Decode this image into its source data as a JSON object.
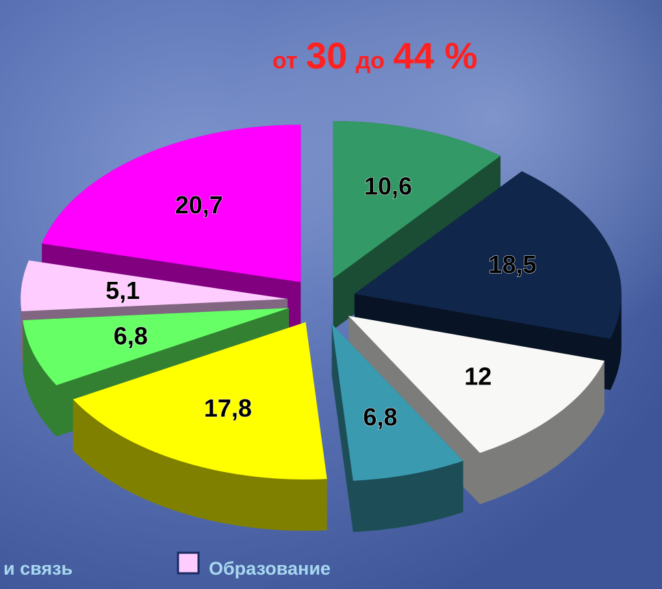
{
  "chart_data": {
    "type": "pie3d",
    "title_parts": [
      "от",
      "30",
      "до",
      "44 %"
    ],
    "title_color": "#ff2020",
    "values": [
      10.6,
      18.5,
      12,
      6.8,
      17.8,
      6.8,
      5.1,
      20.7
    ],
    "value_labels": [
      "10,6",
      "18,5",
      "12",
      "6,8",
      "17,8",
      "6,8",
      "5,1",
      "20,7"
    ],
    "colors": [
      "#339966",
      "#10264a",
      "#f8f8f6",
      "#3a9bb0",
      "#ffff00",
      "#66ff66",
      "#ffccff",
      "#ff00ff"
    ],
    "legend": [
      {
        "label": "и связь"
      },
      {
        "label": "Образование",
        "color": "#ffccff"
      }
    ]
  }
}
